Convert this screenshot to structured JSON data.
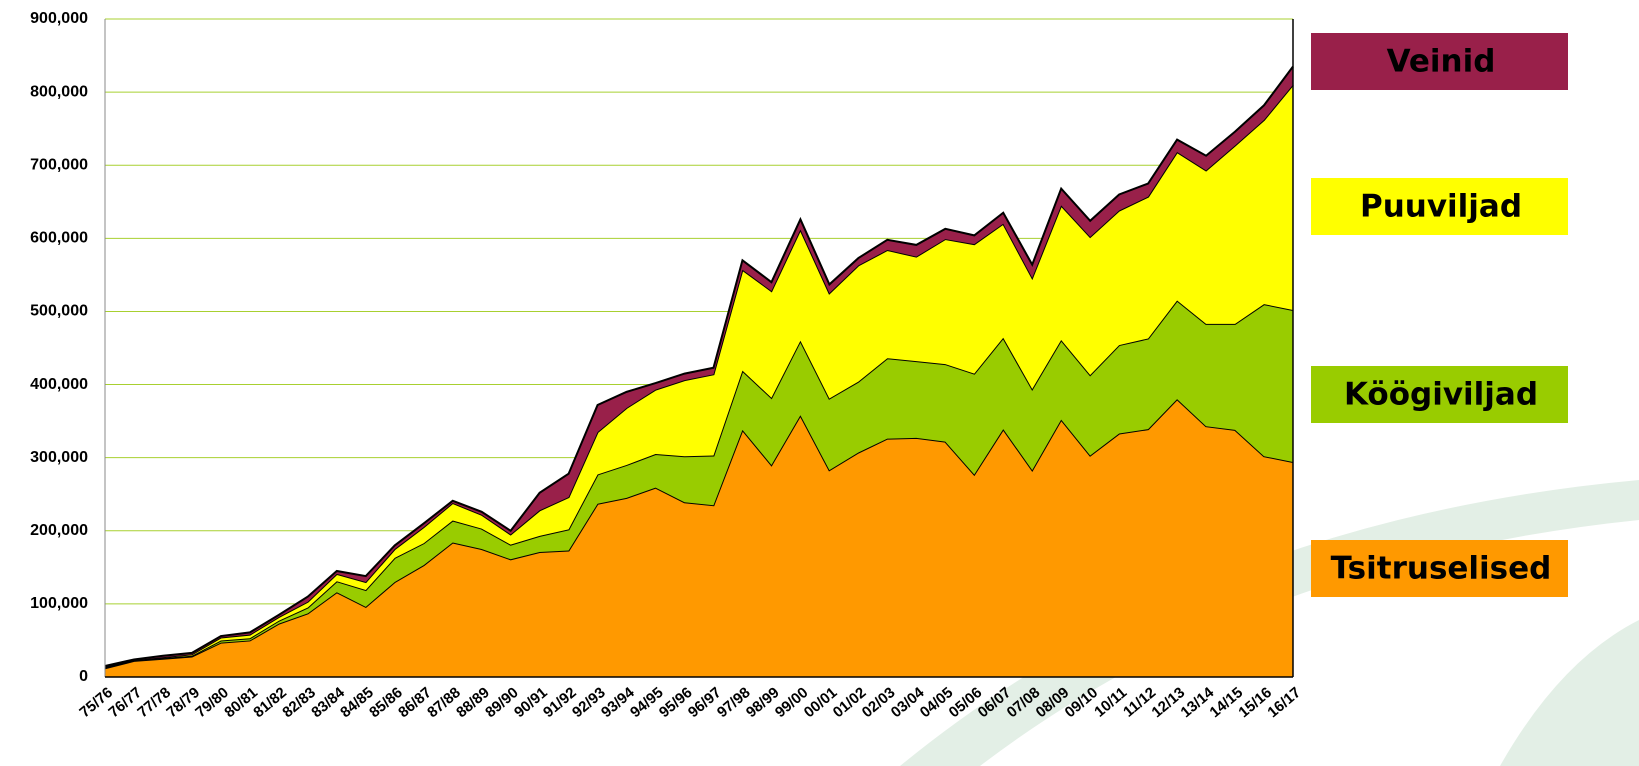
{
  "chart_data": {
    "type": "stacked_area",
    "categories": [
      "75/76",
      "76/77",
      "77/78",
      "78/79",
      "79/80",
      "80/81",
      "81/82",
      "82/83",
      "83/84",
      "84/85",
      "85/86",
      "86/87",
      "87/88",
      "88/89",
      "89/90",
      "90/91",
      "91/92",
      "92/93",
      "93/94",
      "94/95",
      "95/96",
      "96/97",
      "97/98",
      "98/99",
      "99/00",
      "00/01",
      "01/02",
      "02/03",
      "03/04",
      "04/05",
      "05/06",
      "06/07",
      "07/08",
      "08/09",
      "09/10",
      "10/11",
      "11/12",
      "12/13",
      "13/14",
      "14/15",
      "15/16",
      "16/17"
    ],
    "series": [
      {
        "name": "Tsitruselised",
        "color": "#ff9900",
        "values": [
          12000,
          22000,
          25000,
          28000,
          47000,
          50000,
          73000,
          87000,
          116000,
          96000,
          130000,
          153000,
          184000,
          175000,
          161000,
          171000,
          173000,
          237000,
          245000,
          259000,
          239000,
          235000,
          338000,
          290000,
          358000,
          283000,
          307000,
          326000,
          327000,
          322000,
          277000,
          339000,
          283000,
          352000,
          303000,
          333000,
          339000,
          380000,
          343000,
          338000,
          302000,
          294000
        ]
      },
      {
        "name": "Köögiviljad",
        "color": "#99cc00",
        "values": [
          1000,
          1000,
          1000,
          1000,
          3000,
          3000,
          4000,
          8000,
          15000,
          23000,
          33000,
          30000,
          30000,
          28000,
          20000,
          22000,
          29000,
          40000,
          45000,
          46000,
          63000,
          68000,
          81000,
          92000,
          102000,
          98000,
          97000,
          110000,
          105000,
          106000,
          138000,
          125000,
          111000,
          109000,
          110000,
          121000,
          124000,
          135000,
          140000,
          145000,
          208000,
          208000
        ]
      },
      {
        "name": "Puuviljad",
        "color": "#ffff00",
        "values": [
          1000,
          0,
          1000,
          2000,
          4000,
          5000,
          5000,
          8000,
          10000,
          11000,
          12000,
          22000,
          24000,
          19000,
          14000,
          35000,
          44000,
          58000,
          78000,
          88000,
          104000,
          111000,
          138000,
          146000,
          152000,
          144000,
          159000,
          148000,
          143000,
          171000,
          177000,
          156000,
          152000,
          184000,
          189000,
          184000,
          194000,
          203000,
          210000,
          244000,
          252000,
          308000
        ]
      },
      {
        "name": "Veinid",
        "color": "#99204a",
        "values": [
          1000,
          1000,
          2000,
          2000,
          2000,
          3000,
          3000,
          7000,
          4000,
          8000,
          5000,
          5000,
          3000,
          4000,
          5000,
          24000,
          32000,
          37000,
          22000,
          9000,
          9000,
          9000,
          13000,
          12000,
          14000,
          12000,
          10000,
          14000,
          16000,
          14000,
          12000,
          15000,
          18000,
          23000,
          22000,
          22000,
          18000,
          17000,
          20000,
          19000,
          20000,
          25000
        ]
      }
    ],
    "ylim": [
      0,
      900000
    ],
    "yticks": [
      0,
      {
        "value": 100000,
        "label": "100,000"
      },
      {
        "value": 200000,
        "label": "200,000"
      },
      {
        "value": 300000,
        "label": "300,000"
      },
      {
        "value": 400000,
        "label": "400,000"
      },
      {
        "value": 500000,
        "label": "500,000"
      },
      {
        "value": 600000,
        "label": "600,000"
      },
      {
        "value": 700000,
        "label": "700,000"
      },
      {
        "value": 800000,
        "label": "800,000"
      },
      {
        "value": 900000,
        "label": "900,000"
      }
    ],
    "grid": true,
    "grid_color": "#a8d030",
    "legend": "right"
  }
}
